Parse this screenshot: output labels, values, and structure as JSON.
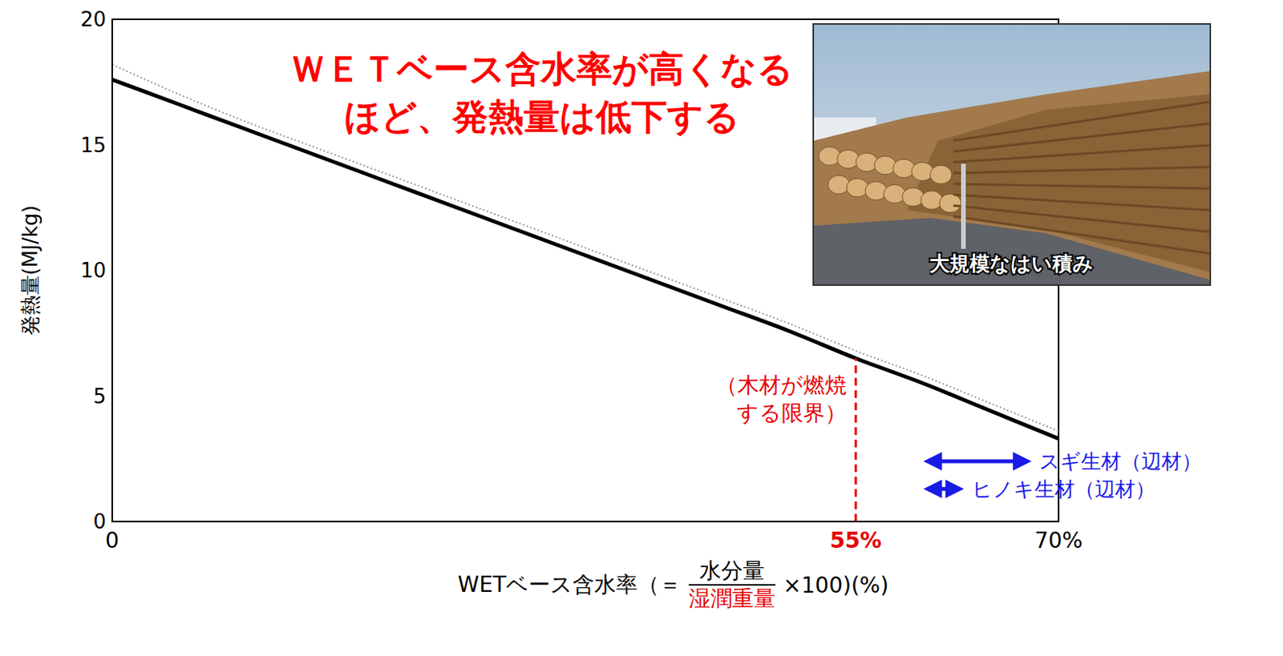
{
  "chart_data": {
    "type": "line",
    "title": "ＷＥＴベース含水率が高くなるほど、発熱量は低下する",
    "title_color": "#ff0000",
    "y_label": "発熱量(MJ/kg)",
    "x_label": {
      "prefix": "WETベース含水率（＝",
      "numerator": "水分量",
      "denominator": "湿潤重量",
      "suffix": "×100)(%)",
      "denominator_color": "#e60000"
    },
    "x": [
      0,
      5,
      10,
      15,
      20,
      25,
      30,
      35,
      40,
      45,
      50,
      55,
      60,
      65,
      70
    ],
    "series": [
      {
        "color": "#000000",
        "line_style": "solid",
        "values": [
          17.6,
          16.6,
          15.6,
          14.6,
          13.6,
          12.6,
          11.6,
          10.6,
          9.6,
          8.6,
          7.6,
          6.5,
          5.5,
          4.4,
          3.3
        ]
      },
      {
        "color": "#999999",
        "line_style": "dotted",
        "values": [
          18.2,
          17.0,
          15.9,
          14.9,
          13.9,
          12.9,
          11.9,
          10.9,
          9.9,
          8.9,
          7.9,
          6.8,
          5.8,
          4.7,
          3.6
        ]
      }
    ],
    "xlim": [
      0,
      70
    ],
    "ylim": [
      0,
      20
    ],
    "xticks": [
      0,
      {
        "value": 55,
        "label": "55%"
      },
      {
        "value": 70,
        "label": "70%"
      }
    ],
    "yticks": [
      0,
      5,
      10,
      15,
      20
    ],
    "grid": false,
    "limit": {
      "x": 55,
      "y": 6.5,
      "text": "（木材が燃焼する限界）",
      "color": "#e60000"
    },
    "ranges": [
      {
        "text": "スギ生材（辺材）",
        "from": 60,
        "to": 68,
        "y": 2.4,
        "color": "#1a1ae6"
      },
      {
        "text": "ヒノキ生材（辺材）",
        "from": 60,
        "to": 63,
        "y": 1.3,
        "color": "#1a1ae6"
      }
    ],
    "inset_caption": "大規模なはい積み"
  }
}
